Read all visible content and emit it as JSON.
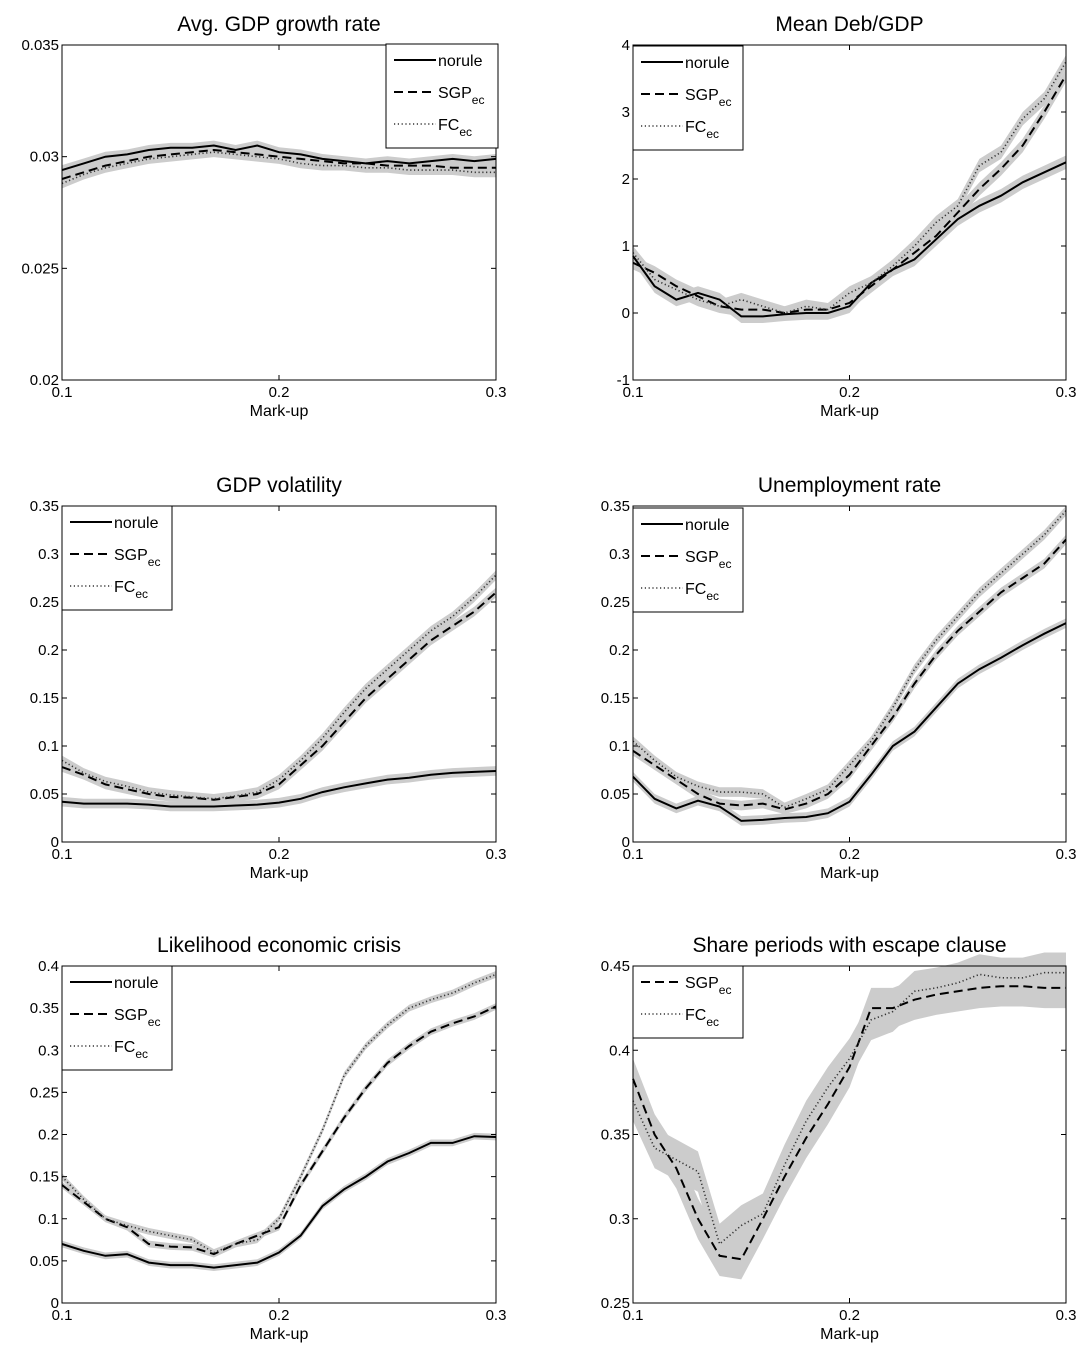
{
  "chart_data": [
    {
      "type": "line",
      "title": "Avg. GDP growth rate",
      "xlabel": "Mark-up",
      "ylabel": "",
      "xlim": [
        0.1,
        0.3
      ],
      "ylim": [
        0.02,
        0.035
      ],
      "xticks": [
        "0.1",
        "0.2",
        "0.3"
      ],
      "yticks": [
        "0.02",
        "0.025",
        "0.03",
        "0.035"
      ],
      "legend_position": "top-right",
      "x": [
        0.1,
        0.11,
        0.12,
        0.13,
        0.14,
        0.15,
        0.16,
        0.17,
        0.18,
        0.19,
        0.2,
        0.21,
        0.22,
        0.23,
        0.24,
        0.25,
        0.26,
        0.27,
        0.28,
        0.29,
        0.3
      ],
      "series": [
        {
          "name": "norule",
          "style": "solid",
          "values": [
            0.0294,
            0.0297,
            0.03,
            0.0301,
            0.0303,
            0.0304,
            0.0304,
            0.0305,
            0.0303,
            0.0305,
            0.0302,
            0.0301,
            0.0299,
            0.0298,
            0.0297,
            0.0298,
            0.0297,
            0.0298,
            0.0299,
            0.0298,
            0.0299
          ]
        },
        {
          "name": "SGP",
          "sub": "ec",
          "style": "dashed",
          "values": [
            0.029,
            0.0293,
            0.0296,
            0.0298,
            0.03,
            0.0301,
            0.0302,
            0.0303,
            0.0302,
            0.0301,
            0.03,
            0.0299,
            0.0298,
            0.0297,
            0.0297,
            0.0296,
            0.0296,
            0.0296,
            0.0295,
            0.0295,
            0.0295
          ]
        },
        {
          "name": "FC",
          "sub": "ec",
          "style": "dotted",
          "values": [
            0.0288,
            0.0292,
            0.0295,
            0.0297,
            0.0299,
            0.03,
            0.0301,
            0.0302,
            0.0301,
            0.03,
            0.0299,
            0.0297,
            0.0296,
            0.0296,
            0.0295,
            0.0295,
            0.0294,
            0.0294,
            0.0294,
            0.0293,
            0.0293
          ]
        }
      ]
    },
    {
      "type": "line",
      "title": "Mean Deb/GDP",
      "xlabel": "Mark-up",
      "ylabel": "",
      "xlim": [
        0.1,
        0.3
      ],
      "ylim": [
        -1,
        4
      ],
      "xticks": [
        "0.1",
        "0.2",
        "0.3"
      ],
      "yticks": [
        "-1",
        "0",
        "1",
        "2",
        "3",
        "4"
      ],
      "legend_position": "top-left",
      "x": [
        0.1,
        0.11,
        0.12,
        0.13,
        0.14,
        0.15,
        0.16,
        0.17,
        0.18,
        0.19,
        0.2,
        0.21,
        0.22,
        0.23,
        0.24,
        0.25,
        0.26,
        0.27,
        0.28,
        0.29,
        0.3
      ],
      "series": [
        {
          "name": "norule",
          "style": "solid",
          "values": [
            0.85,
            0.4,
            0.2,
            0.3,
            0.2,
            -0.05,
            -0.05,
            -0.02,
            0.0,
            0.0,
            0.1,
            0.45,
            0.65,
            0.8,
            1.1,
            1.4,
            1.6,
            1.75,
            1.95,
            2.1,
            2.25
          ]
        },
        {
          "name": "SGP",
          "sub": "ec",
          "style": "dashed",
          "values": [
            0.75,
            0.6,
            0.4,
            0.25,
            0.1,
            0.05,
            0.05,
            0.0,
            0.05,
            0.05,
            0.15,
            0.4,
            0.65,
            0.9,
            1.15,
            1.5,
            1.85,
            2.15,
            2.5,
            3.0,
            3.55
          ]
        },
        {
          "name": "FC",
          "sub": "ec",
          "style": "dotted",
          "values": [
            0.9,
            0.5,
            0.35,
            0.2,
            0.1,
            0.2,
            0.1,
            0.0,
            0.1,
            0.05,
            0.3,
            0.45,
            0.7,
            1.0,
            1.35,
            1.6,
            2.2,
            2.4,
            2.9,
            3.2,
            3.75
          ]
        }
      ]
    },
    {
      "type": "line",
      "title": "GDP volatility",
      "xlabel": "Mark-up",
      "ylabel": "",
      "xlim": [
        0.1,
        0.3
      ],
      "ylim": [
        0,
        0.35
      ],
      "xticks": [
        "0.1",
        "0.2",
        "0.3"
      ],
      "yticks": [
        "0",
        "0.05",
        "0.1",
        "0.15",
        "0.2",
        "0.25",
        "0.3",
        "0.35"
      ],
      "legend_position": "top-left",
      "x": [
        0.1,
        0.11,
        0.12,
        0.13,
        0.14,
        0.15,
        0.16,
        0.17,
        0.18,
        0.19,
        0.2,
        0.21,
        0.22,
        0.23,
        0.24,
        0.25,
        0.26,
        0.27,
        0.28,
        0.29,
        0.3
      ],
      "series": [
        {
          "name": "norule",
          "style": "solid",
          "values": [
            0.042,
            0.04,
            0.04,
            0.04,
            0.039,
            0.037,
            0.037,
            0.037,
            0.038,
            0.039,
            0.041,
            0.045,
            0.052,
            0.057,
            0.061,
            0.065,
            0.067,
            0.07,
            0.072,
            0.073,
            0.074
          ]
        },
        {
          "name": "SGP",
          "sub": "ec",
          "style": "dashed",
          "values": [
            0.078,
            0.07,
            0.06,
            0.055,
            0.05,
            0.047,
            0.046,
            0.044,
            0.047,
            0.05,
            0.06,
            0.08,
            0.1,
            0.125,
            0.15,
            0.17,
            0.19,
            0.21,
            0.225,
            0.24,
            0.26
          ]
        },
        {
          "name": "FC",
          "sub": "ec",
          "style": "dotted",
          "values": [
            0.085,
            0.072,
            0.063,
            0.058,
            0.052,
            0.049,
            0.047,
            0.045,
            0.048,
            0.052,
            0.065,
            0.085,
            0.108,
            0.135,
            0.16,
            0.18,
            0.2,
            0.22,
            0.235,
            0.255,
            0.278
          ]
        }
      ]
    },
    {
      "type": "line",
      "title": "Unemployment rate",
      "xlabel": "Mark-up",
      "ylabel": "",
      "xlim": [
        0.1,
        0.3
      ],
      "ylim": [
        0,
        0.35
      ],
      "xticks": [
        "0.1",
        "0.2",
        "0.3"
      ],
      "yticks": [
        "0",
        "0.05",
        "0.1",
        "0.15",
        "0.2",
        "0.25",
        "0.3",
        "0.35"
      ],
      "legend_position": "top-left",
      "x": [
        0.1,
        0.11,
        0.12,
        0.13,
        0.14,
        0.15,
        0.16,
        0.17,
        0.18,
        0.19,
        0.2,
        0.21,
        0.22,
        0.23,
        0.24,
        0.25,
        0.26,
        0.27,
        0.28,
        0.29,
        0.3
      ],
      "series": [
        {
          "name": "norule",
          "style": "solid",
          "values": [
            0.068,
            0.045,
            0.035,
            0.043,
            0.037,
            0.022,
            0.023,
            0.025,
            0.026,
            0.03,
            0.042,
            0.07,
            0.1,
            0.115,
            0.14,
            0.165,
            0.18,
            0.192,
            0.205,
            0.217,
            0.228
          ]
        },
        {
          "name": "SGP",
          "sub": "ec",
          "style": "dashed",
          "values": [
            0.095,
            0.08,
            0.065,
            0.05,
            0.04,
            0.038,
            0.04,
            0.034,
            0.04,
            0.05,
            0.07,
            0.1,
            0.13,
            0.165,
            0.195,
            0.22,
            0.24,
            0.26,
            0.275,
            0.29,
            0.315
          ]
        },
        {
          "name": "FC",
          "sub": "ec",
          "style": "dotted",
          "values": [
            0.105,
            0.085,
            0.068,
            0.058,
            0.052,
            0.052,
            0.05,
            0.036,
            0.045,
            0.055,
            0.08,
            0.105,
            0.14,
            0.18,
            0.21,
            0.235,
            0.26,
            0.28,
            0.3,
            0.32,
            0.345
          ]
        }
      ]
    },
    {
      "type": "line",
      "title": "Likelihood economic crisis",
      "xlabel": "Mark-up",
      "ylabel": "",
      "xlim": [
        0.1,
        0.3
      ],
      "ylim": [
        0,
        0.4
      ],
      "xticks": [
        "0.1",
        "0.2",
        "0.3"
      ],
      "yticks": [
        "0",
        "0.05",
        "0.1",
        "0.15",
        "0.2",
        "0.25",
        "0.3",
        "0.35",
        "0.4"
      ],
      "legend_position": "top-left",
      "x": [
        0.1,
        0.11,
        0.12,
        0.13,
        0.14,
        0.15,
        0.16,
        0.17,
        0.18,
        0.19,
        0.2,
        0.21,
        0.22,
        0.23,
        0.24,
        0.25,
        0.26,
        0.27,
        0.28,
        0.29,
        0.3
      ],
      "series": [
        {
          "name": "norule",
          "style": "solid",
          "values": [
            0.07,
            0.062,
            0.056,
            0.058,
            0.048,
            0.045,
            0.045,
            0.042,
            0.045,
            0.048,
            0.06,
            0.08,
            0.115,
            0.135,
            0.15,
            0.168,
            0.178,
            0.19,
            0.19,
            0.198,
            0.197
          ]
        },
        {
          "name": "SGP",
          "sub": "ec",
          "style": "dashed",
          "values": [
            0.14,
            0.12,
            0.1,
            0.09,
            0.07,
            0.067,
            0.066,
            0.058,
            0.07,
            0.08,
            0.09,
            0.14,
            0.18,
            0.22,
            0.255,
            0.285,
            0.305,
            0.322,
            0.332,
            0.34,
            0.352
          ]
        },
        {
          "name": "FC",
          "sub": "ec",
          "style": "dotted",
          "values": [
            0.15,
            0.123,
            0.1,
            0.092,
            0.085,
            0.08,
            0.075,
            0.06,
            0.07,
            0.075,
            0.1,
            0.15,
            0.205,
            0.27,
            0.305,
            0.33,
            0.35,
            0.36,
            0.368,
            0.38,
            0.39
          ]
        }
      ]
    },
    {
      "type": "line",
      "title": "Share periods with escape clause",
      "xlabel": "Mark-up",
      "ylabel": "",
      "xlim": [
        0.1,
        0.3
      ],
      "ylim": [
        0.25,
        0.45
      ],
      "xticks": [
        "0.1",
        "0.2",
        "0.3"
      ],
      "yticks": [
        "0.25",
        "0.3",
        "0.35",
        "0.4",
        "0.45"
      ],
      "legend_position": "top-left",
      "x": [
        0.1,
        0.11,
        0.12,
        0.13,
        0.14,
        0.15,
        0.16,
        0.17,
        0.18,
        0.19,
        0.2,
        0.21,
        0.22,
        0.23,
        0.24,
        0.25,
        0.26,
        0.27,
        0.28,
        0.29,
        0.3
      ],
      "series": [
        {
          "name": "SGP",
          "sub": "ec",
          "style": "dashed",
          "values": [
            0.383,
            0.35,
            0.33,
            0.3,
            0.278,
            0.276,
            0.3,
            0.325,
            0.348,
            0.368,
            0.39,
            0.425,
            0.425,
            0.43,
            0.433,
            0.435,
            0.437,
            0.438,
            0.438,
            0.437,
            0.437
          ]
        },
        {
          "name": "FC",
          "sub": "ec",
          "style": "dotted",
          "values": [
            0.37,
            0.342,
            0.335,
            0.328,
            0.285,
            0.296,
            0.303,
            0.332,
            0.358,
            0.378,
            0.395,
            0.418,
            0.423,
            0.435,
            0.437,
            0.44,
            0.445,
            0.443,
            0.443,
            0.446,
            0.446
          ]
        }
      ]
    }
  ]
}
